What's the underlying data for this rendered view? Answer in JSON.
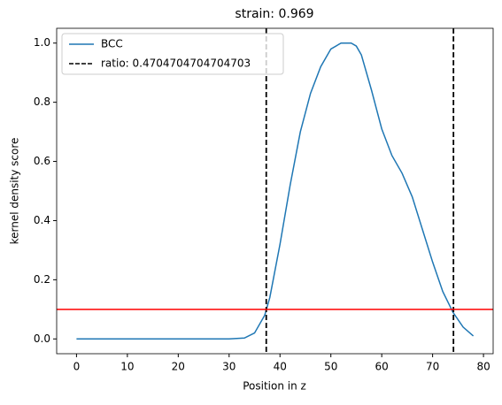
{
  "chart_data": {
    "type": "line",
    "title": "strain: 0.969",
    "x_label": "Position in z",
    "y_label": "kernel density score",
    "x": [
      0,
      10,
      20,
      30,
      33,
      35,
      37,
      38,
      40,
      42,
      44,
      46,
      48,
      50,
      52,
      54,
      55,
      56,
      58,
      60,
      62,
      64,
      66,
      68,
      70,
      72,
      74,
      76,
      78
    ],
    "series": [
      {
        "name": "BCC",
        "color": "#1f77b4",
        "values": [
          0,
          0,
          0,
          0,
          0.003,
          0.02,
          0.08,
          0.14,
          0.32,
          0.52,
          0.7,
          0.83,
          0.92,
          0.98,
          1.0,
          1.0,
          0.99,
          0.96,
          0.84,
          0.71,
          0.62,
          0.56,
          0.48,
          0.37,
          0.26,
          0.16,
          0.09,
          0.04,
          0.01
        ]
      }
    ],
    "vlines": {
      "name": "ratio: 0.4704704704704703",
      "color": "#000000",
      "values": [
        37.3,
        74.1
      ]
    },
    "hline": {
      "color": "#ff0000",
      "value": 0.1
    },
    "xlim": [
      -3.9,
      81.9
    ],
    "ylim": [
      -0.05,
      1.05
    ],
    "xticks": [
      0,
      10,
      20,
      30,
      40,
      50,
      60,
      70,
      80
    ],
    "yticks": [
      {
        "value": 0,
        "label": "0.0"
      },
      {
        "value": 0.2,
        "label": "0.2"
      },
      {
        "value": 0.4,
        "label": "0.4"
      },
      {
        "value": 0.6,
        "label": "0.6"
      },
      {
        "value": 0.8,
        "label": "0.8"
      },
      {
        "value": 1,
        "label": "1.0"
      }
    ],
    "legend": "upper left"
  }
}
